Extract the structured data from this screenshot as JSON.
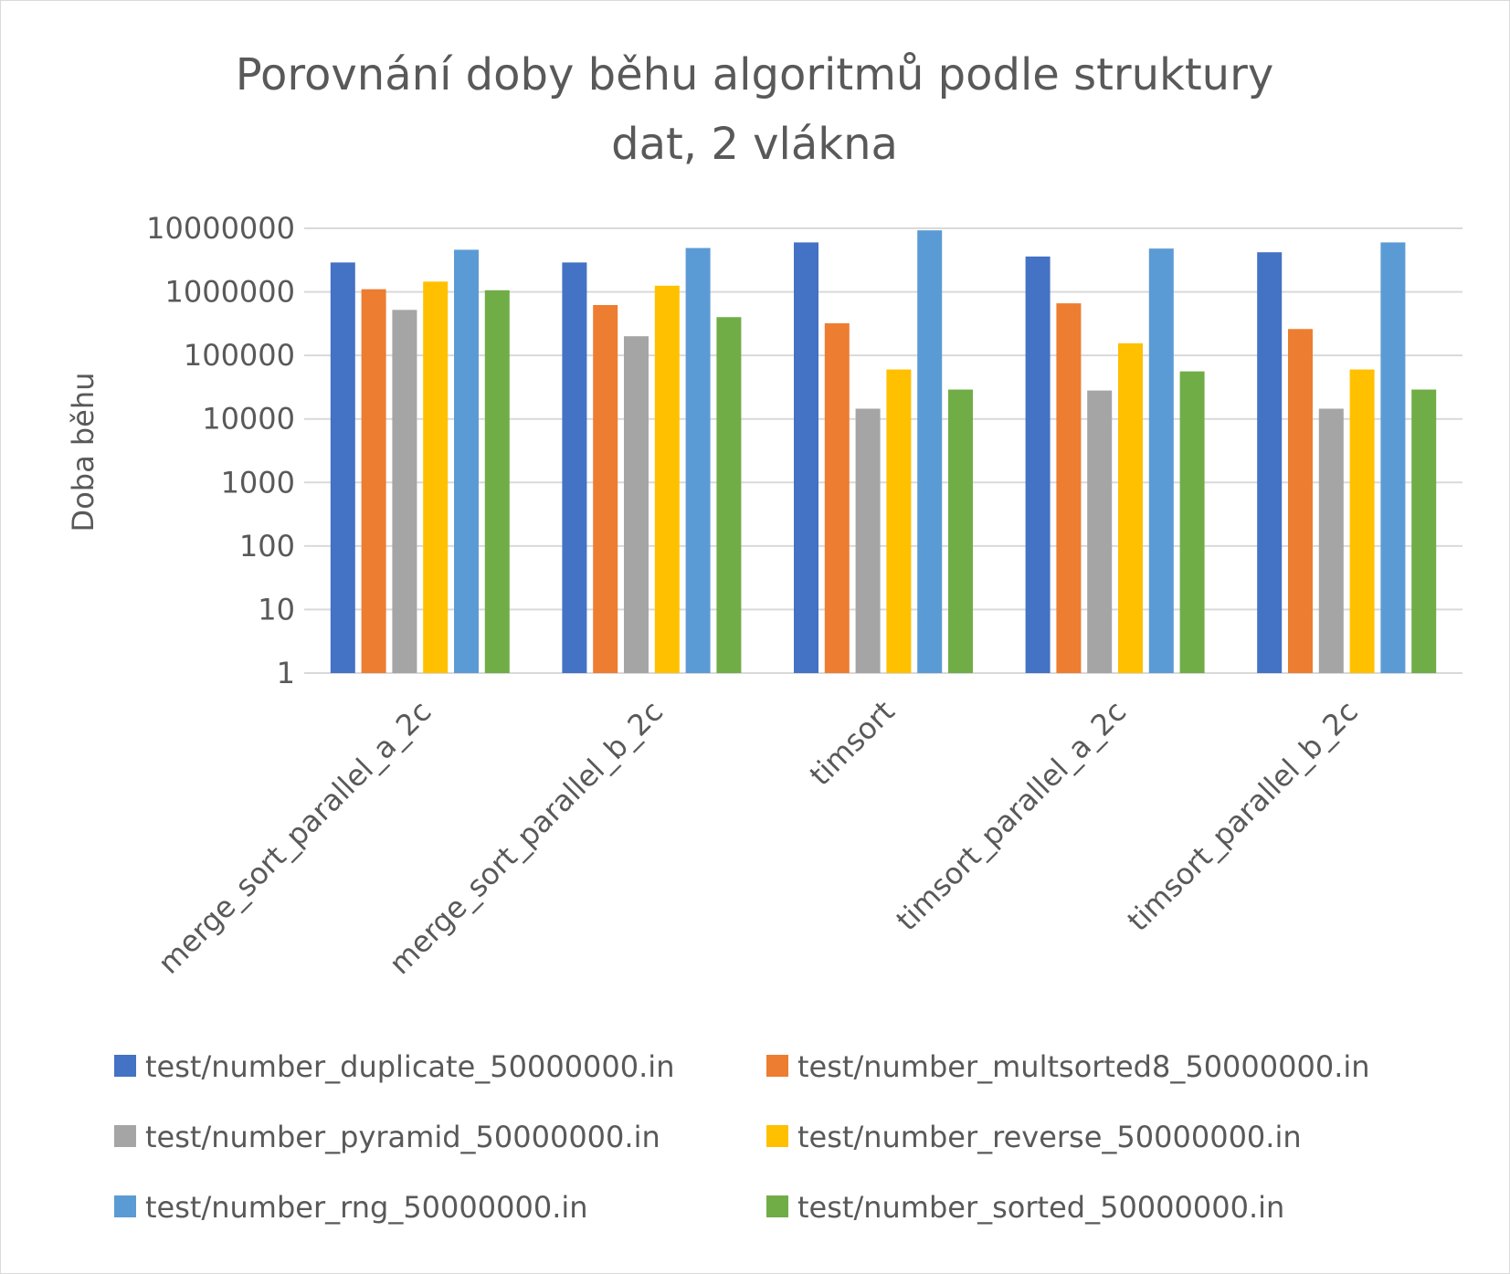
{
  "chart_data": {
    "type": "bar",
    "title_lines": [
      "Porovnání doby běhu algoritmů podle struktury",
      "dat, 2 vlákna"
    ],
    "ylabel": "Doba běhu",
    "xlabel": "",
    "y_scale": "log",
    "ylim": [
      1,
      10000000
    ],
    "y_ticks": [
      "1",
      "10",
      "100",
      "1000",
      "10000",
      "100000",
      "1000000",
      "10000000"
    ],
    "grid": true,
    "legend_position": "bottom",
    "categories": [
      "merge_sort_parallel_a_2c",
      "merge_sort_parallel_b_2c",
      "timsort",
      "timsort_parallel_a_2c",
      "timsort_parallel_b_2c"
    ],
    "series": [
      {
        "name": "test/number_duplicate_50000000.in",
        "color": "#4472C4",
        "values": [
          2900000,
          2900000,
          6000000,
          3600000,
          4200000
        ]
      },
      {
        "name": "test/number_multsorted8_50000000.in",
        "color": "#ED7D31",
        "values": [
          1100000,
          620000,
          320000,
          660000,
          260000
        ]
      },
      {
        "name": "test/number_pyramid_50000000.in",
        "color": "#A5A5A5",
        "values": [
          520000,
          200000,
          14500,
          28000,
          14500
        ]
      },
      {
        "name": "test/number_reverse_50000000.in",
        "color": "#FFC000",
        "values": [
          1450000,
          1250000,
          60000,
          155000,
          60000
        ]
      },
      {
        "name": "test/number_rng_50000000.in",
        "color": "#5B9BD5",
        "values": [
          4600000,
          4900000,
          9300000,
          4800000,
          6000000
        ]
      },
      {
        "name": "test/number_sorted_50000000.in",
        "color": "#70AD47",
        "values": [
          1060000,
          400000,
          29000,
          56000,
          29000
        ]
      }
    ]
  }
}
